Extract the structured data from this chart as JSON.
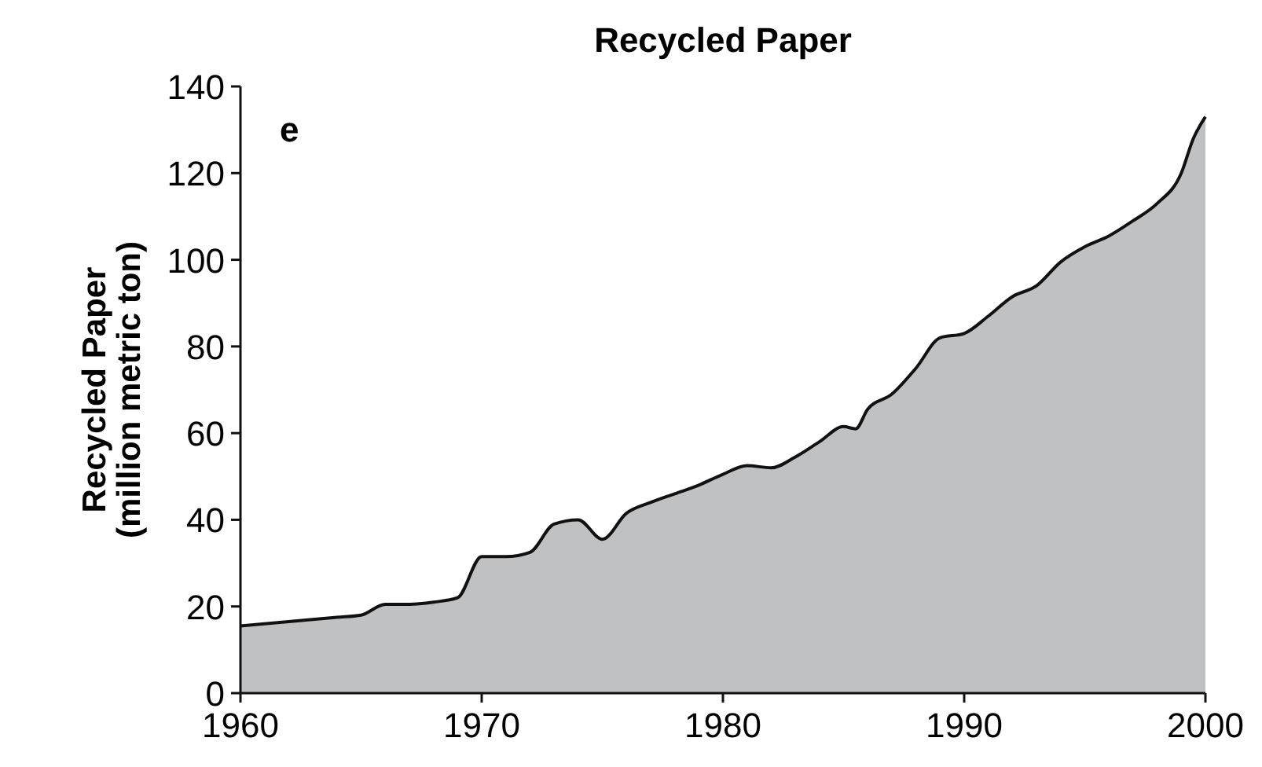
{
  "chart_data": {
    "type": "area",
    "title": "Recycled Paper",
    "ylabel": "Recycled Paper\n(million metric ton)",
    "annotations": [
      "e"
    ],
    "x": [
      1960,
      1962,
      1964,
      1965,
      1966,
      1967,
      1968,
      1969,
      1970,
      1971,
      1972,
      1973,
      1974,
      1975,
      1976,
      1977,
      1978,
      1979,
      1980,
      1981,
      1982,
      1983,
      1984,
      1985,
      1985.5,
      1986,
      1987,
      1988,
      1989,
      1990,
      1991,
      1992,
      1993,
      1994,
      1995,
      1996,
      1997,
      1998,
      1999,
      1999.5,
      2000
    ],
    "series": [
      {
        "color": "#c0c1c3",
        "values": [
          15.5,
          16.5,
          17.5,
          18,
          20.5,
          20.5,
          21,
          22,
          31.5,
          31.5,
          32.5,
          39,
          40,
          35.5,
          41.5,
          44,
          46,
          48,
          50.5,
          52.5,
          52,
          54.5,
          58,
          61.5,
          61,
          65.5,
          69,
          75,
          82,
          83,
          87,
          91.5,
          94,
          99.5,
          103,
          105.5,
          109,
          113,
          120,
          128,
          133
        ]
      }
    ],
    "xlim": [
      1960,
      2000
    ],
    "xticks": [
      1960,
      1970,
      1980,
      1990,
      2000
    ],
    "ylim": [
      0,
      140
    ],
    "yticks": [
      0,
      20,
      40,
      60,
      80,
      100,
      120,
      140
    ]
  }
}
